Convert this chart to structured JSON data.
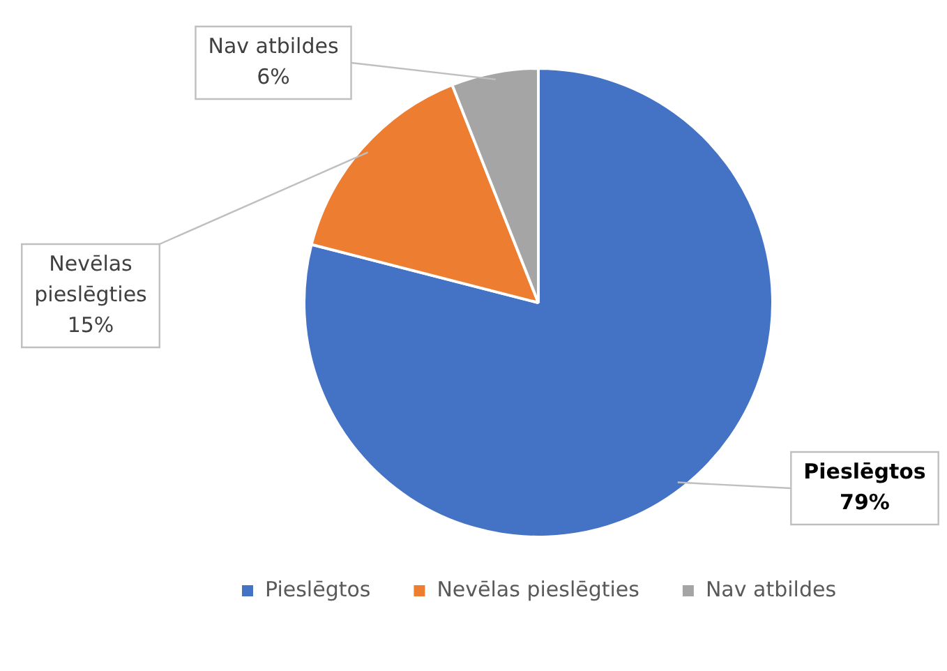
{
  "chart_data": {
    "type": "pie",
    "categories": [
      "Pieslēgtos",
      "Nevēlas pieslēgties",
      "Nav atbildes"
    ],
    "values": [
      79,
      15,
      6
    ],
    "colors": [
      "#4472c4",
      "#ed7d31",
      "#a5a5a5"
    ],
    "value_labels": [
      "79%",
      "15%",
      "6%"
    ],
    "legend": "bottom"
  }
}
